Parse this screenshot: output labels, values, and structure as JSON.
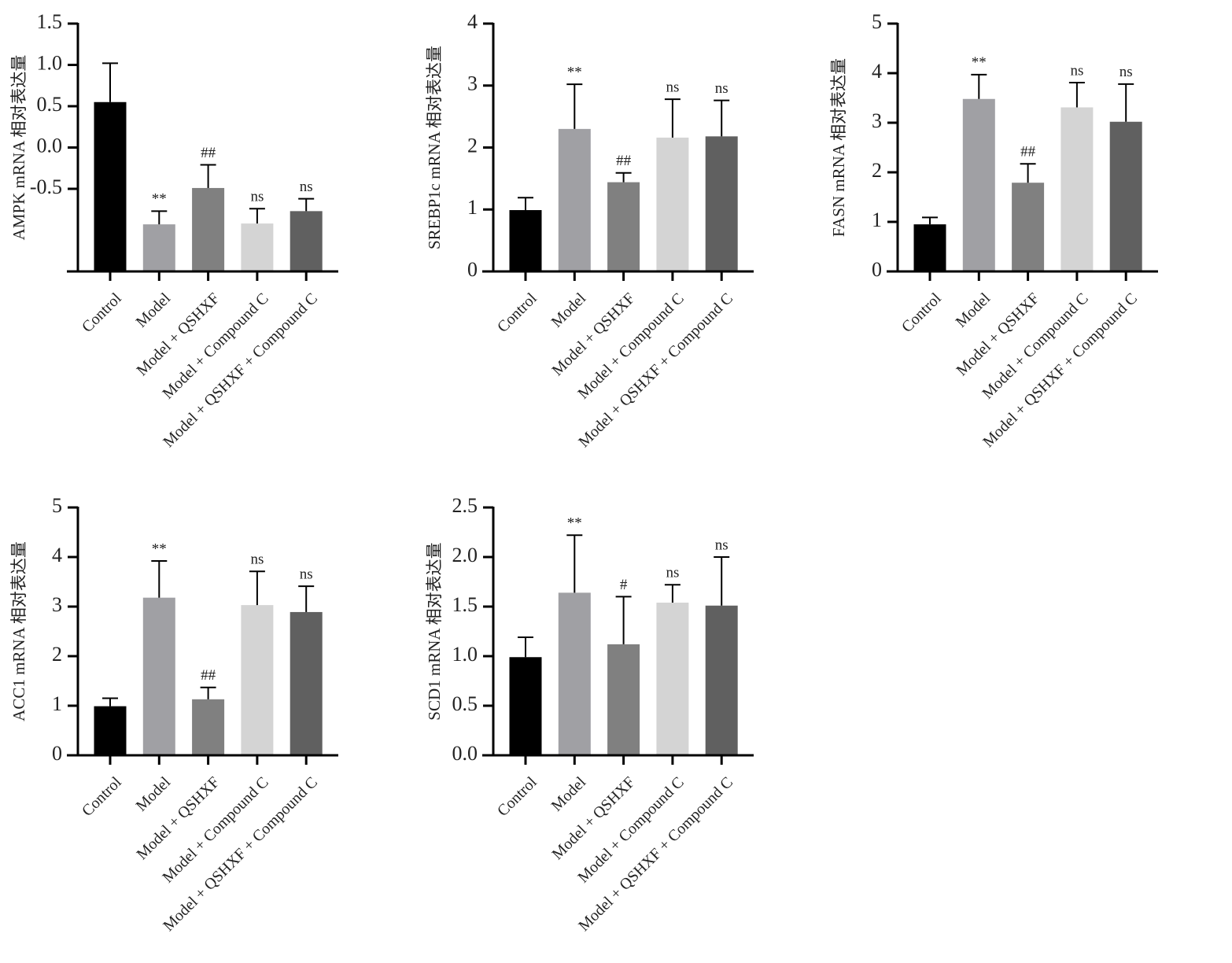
{
  "chart_data": [
    {
      "type": "bar",
      "ylabel": "AMPK mRNA 相对表达量",
      "categories": [
        "Control",
        "Model",
        "Model + QSHXF",
        "Model + Compound C",
        "Model + QSHXF + Compound C"
      ],
      "colors": [
        "#000000",
        "#a0a0a4",
        "#808080",
        "#d4d4d4",
        "#606060"
      ],
      "values": [
        0.55,
        -0.93,
        -0.49,
        -0.92,
        -0.77
      ],
      "errors": [
        0.47,
        0.16,
        0.28,
        0.18,
        0.15
      ],
      "annotations": [
        null,
        "**",
        "##",
        "ns",
        "ns"
      ],
      "ylim": [
        -1.5,
        1.5
      ],
      "yticks": [
        -0.5,
        {
          "value": 0,
          "label": "0.0"
        },
        0.5,
        {
          "value": 1,
          "label": "1.0"
        },
        1.5
      ]
    },
    {
      "type": "bar",
      "ylabel": "SREBP1c mRNA 相对表达量",
      "categories": [
        "Control",
        "Model",
        "Model + QSHXF",
        "Model + Compound C",
        "Model + QSHXF + Compound C"
      ],
      "colors": [
        "#000000",
        "#a0a0a4",
        "#808080",
        "#d4d4d4",
        "#606060"
      ],
      "values": [
        0.99,
        2.3,
        1.44,
        2.16,
        2.18
      ],
      "errors": [
        0.2,
        0.72,
        0.15,
        0.62,
        0.58
      ],
      "annotations": [
        null,
        "**",
        "##",
        "ns",
        "ns"
      ],
      "ylim": [
        0,
        4
      ],
      "yticks": [
        0,
        1,
        2,
        3,
        4
      ]
    },
    {
      "type": "bar",
      "ylabel": "FASN mRNA 相对表达量",
      "categories": [
        "Control",
        "Model",
        "Model + QSHXF",
        "Model + Compound C",
        "Model + QSHXF + Compound C"
      ],
      "colors": [
        "#000000",
        "#a0a0a4",
        "#808080",
        "#d4d4d4",
        "#606060"
      ],
      "values": [
        0.95,
        3.48,
        1.79,
        3.31,
        3.02
      ],
      "errors": [
        0.14,
        0.49,
        0.38,
        0.5,
        0.76
      ],
      "annotations": [
        null,
        "**",
        "##",
        "ns",
        "ns"
      ],
      "ylim": [
        0,
        5
      ],
      "yticks": [
        0,
        1,
        2,
        3,
        4,
        5
      ]
    },
    {
      "type": "bar",
      "ylabel": "ACC1 mRNA 相对表达量",
      "categories": [
        "Control",
        "Model",
        "Model + QSHXF",
        "Model + Compound C",
        "Model + QSHXF + Compound C"
      ],
      "colors": [
        "#000000",
        "#a0a0a4",
        "#808080",
        "#d4d4d4",
        "#606060"
      ],
      "values": [
        0.99,
        3.18,
        1.13,
        3.03,
        2.89
      ],
      "errors": [
        0.16,
        0.74,
        0.24,
        0.68,
        0.52
      ],
      "annotations": [
        null,
        "**",
        "##",
        "ns",
        "ns"
      ],
      "ylim": [
        0,
        5
      ],
      "yticks": [
        0,
        1,
        2,
        3,
        4,
        5
      ]
    },
    {
      "type": "bar",
      "ylabel": "SCD1 mRNA 相对表达量",
      "categories": [
        "Control",
        "Model",
        "Model + QSHXF",
        "Model + Compound C",
        "Model + QSHXF + Compound C"
      ],
      "colors": [
        "#000000",
        "#a0a0a4",
        "#808080",
        "#d4d4d4",
        "#606060"
      ],
      "values": [
        0.99,
        1.64,
        1.12,
        1.54,
        1.51
      ],
      "errors": [
        0.2,
        0.58,
        0.48,
        0.18,
        0.49
      ],
      "annotations": [
        null,
        "**",
        "#",
        "ns",
        "ns"
      ],
      "ylim": [
        0,
        2.5
      ],
      "yticks": [
        {
          "value": 0,
          "label": "0.0"
        },
        0.5,
        {
          "value": 1,
          "label": "1.0"
        },
        1.5,
        {
          "value": 2,
          "label": "2.0"
        },
        2.5
      ]
    }
  ]
}
